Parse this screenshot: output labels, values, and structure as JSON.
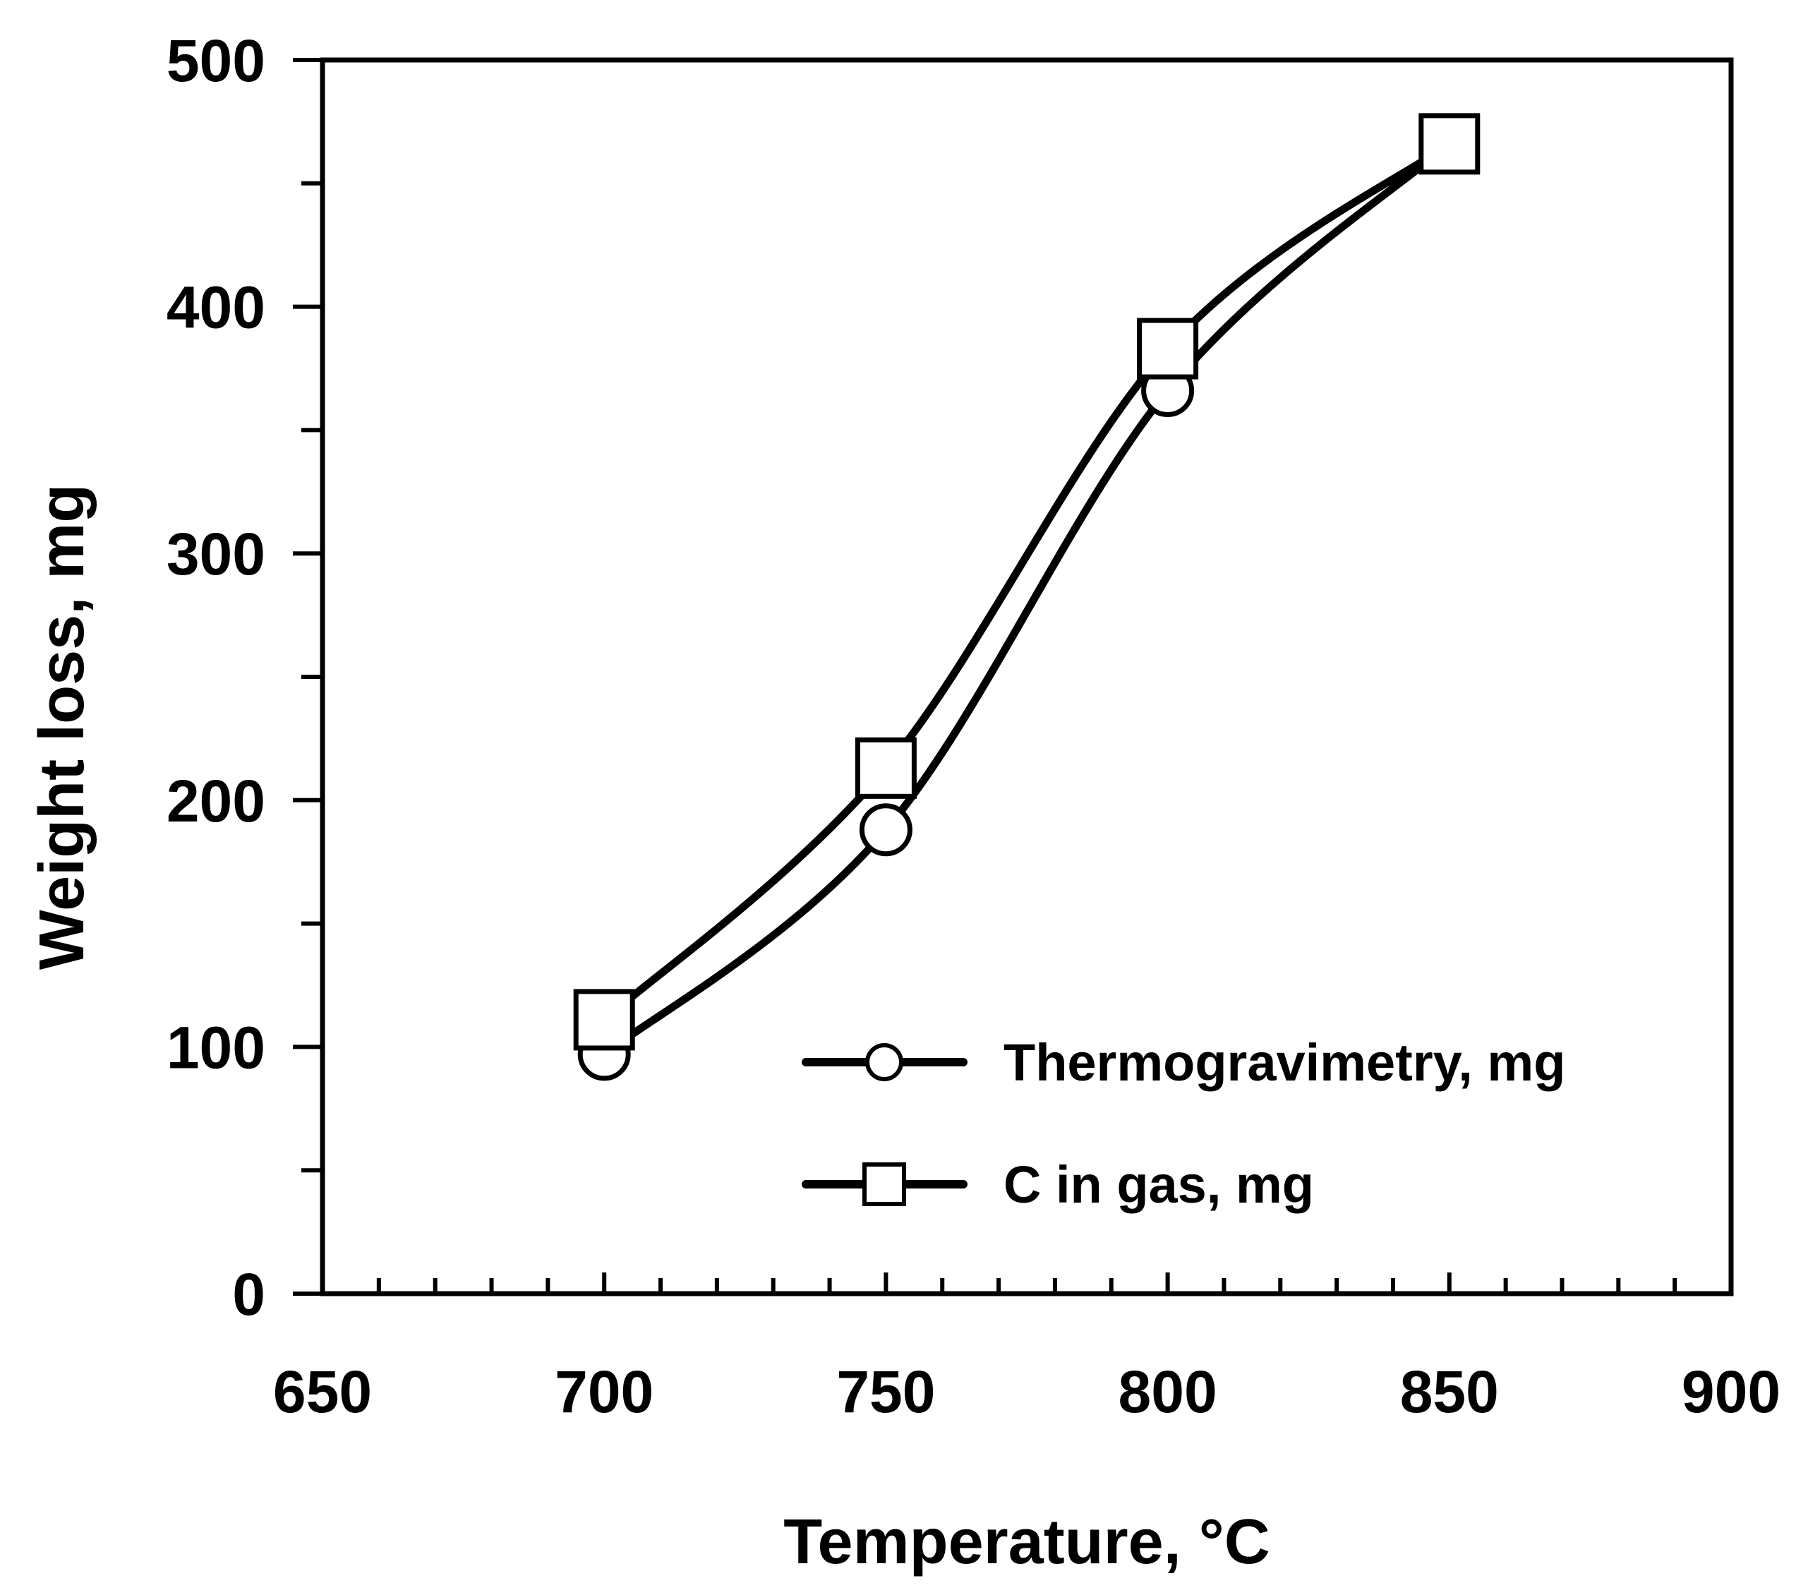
{
  "chart_data": {
    "type": "line",
    "title": "",
    "xlabel": "Temperature, °C",
    "ylabel": "Weight loss, mg",
    "xlim": [
      650,
      900
    ],
    "ylim": [
      0,
      500
    ],
    "xticks": [
      650,
      700,
      750,
      800,
      850,
      900
    ],
    "yticks": [
      0,
      100,
      200,
      300,
      400,
      500
    ],
    "x_minor_step": 10,
    "y_minor_step": 50,
    "grid": false,
    "legend_position": "bottom-right",
    "series": [
      {
        "name": "Thermogravimetry, mg",
        "marker": "circle",
        "x": [
          700,
          750,
          800,
          850
        ],
        "y": [
          97,
          188,
          366,
          466
        ]
      },
      {
        "name": "C in gas, mg",
        "marker": "square",
        "x": [
          700,
          750,
          800,
          850
        ],
        "y": [
          111,
          213,
          383,
          466
        ]
      }
    ]
  }
}
